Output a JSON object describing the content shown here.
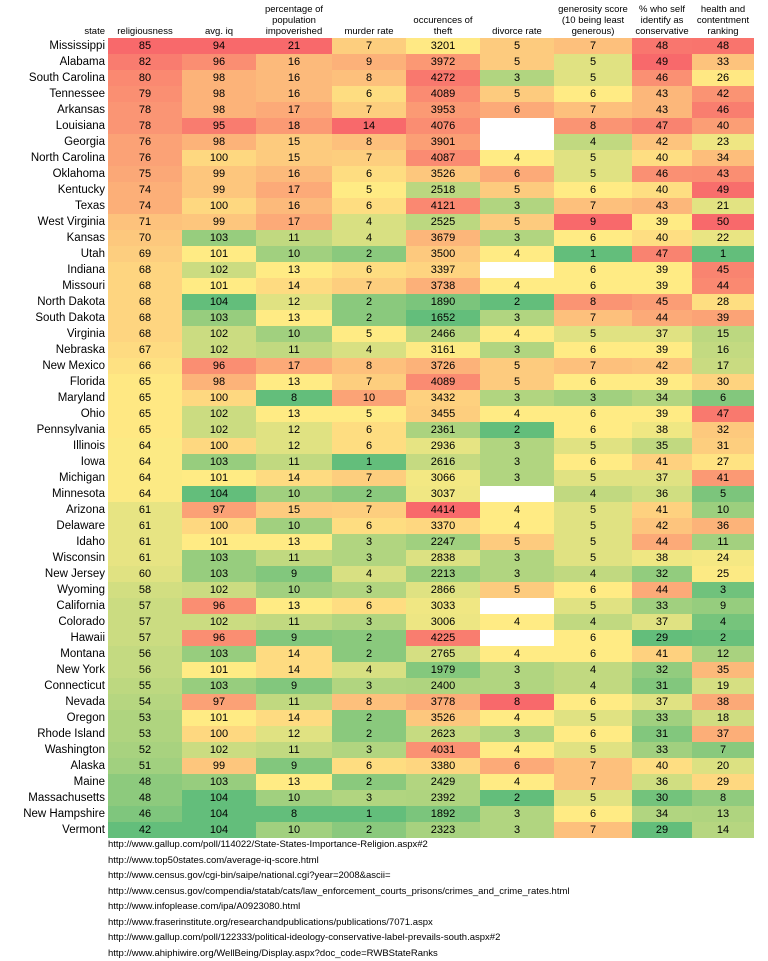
{
  "columns": [
    "state",
    "religiousness",
    "avg. iq",
    "percentage of population impoverished",
    "murder rate",
    "occurences of theft",
    "divorce rate",
    "generosity score (10 being least generous)",
    "% who self identify as conservative",
    "health and contentment ranking"
  ],
  "rows": [
    [
      "Mississippi",
      "85",
      "94",
      "21",
      "7",
      "3201",
      "5",
      "7",
      "48",
      "48"
    ],
    [
      "Alabama",
      "82",
      "96",
      "16",
      "9",
      "3972",
      "5",
      "5",
      "49",
      "33"
    ],
    [
      "South Carolina",
      "80",
      "98",
      "16",
      "8",
      "4272",
      "3",
      "5",
      "46",
      "26"
    ],
    [
      "Tennessee",
      "79",
      "98",
      "16",
      "6",
      "4089",
      "5",
      "6",
      "43",
      "42"
    ],
    [
      "Arkansas",
      "78",
      "98",
      "17",
      "7",
      "3953",
      "6",
      "7",
      "43",
      "46"
    ],
    [
      "Louisiana",
      "78",
      "95",
      "18",
      "14",
      "4076",
      "",
      "8",
      "47",
      "40"
    ],
    [
      "Georgia",
      "76",
      "98",
      "15",
      "8",
      "3901",
      "",
      "4",
      "42",
      "23"
    ],
    [
      "North Carolina",
      "76",
      "100",
      "15",
      "7",
      "4087",
      "4",
      "5",
      "40",
      "34"
    ],
    [
      "Oklahoma",
      "75",
      "99",
      "16",
      "6",
      "3526",
      "6",
      "5",
      "46",
      "43"
    ],
    [
      "Kentucky",
      "74",
      "99",
      "17",
      "5",
      "2518",
      "5",
      "6",
      "40",
      "49"
    ],
    [
      "Texas",
      "74",
      "100",
      "16",
      "6",
      "4121",
      "3",
      "7",
      "43",
      "21"
    ],
    [
      "West Virginia",
      "71",
      "99",
      "17",
      "4",
      "2525",
      "5",
      "9",
      "39",
      "50"
    ],
    [
      "Kansas",
      "70",
      "103",
      "11",
      "4",
      "3679",
      "3",
      "6",
      "40",
      "22"
    ],
    [
      "Utah",
      "69",
      "101",
      "10",
      "2",
      "3500",
      "4",
      "1",
      "47",
      "1"
    ],
    [
      "Indiana",
      "68",
      "102",
      "13",
      "6",
      "3397",
      "",
      "6",
      "39",
      "45"
    ],
    [
      "Missouri",
      "68",
      "101",
      "14",
      "7",
      "3738",
      "4",
      "6",
      "39",
      "44"
    ],
    [
      "North Dakota",
      "68",
      "104",
      "12",
      "2",
      "1890",
      "2",
      "8",
      "45",
      "28"
    ],
    [
      "South Dakota",
      "68",
      "103",
      "13",
      "2",
      "1652",
      "3",
      "7",
      "44",
      "39"
    ],
    [
      "Virginia",
      "68",
      "102",
      "10",
      "5",
      "2466",
      "4",
      "5",
      "37",
      "15"
    ],
    [
      "Nebraska",
      "67",
      "102",
      "11",
      "4",
      "3161",
      "3",
      "6",
      "39",
      "16"
    ],
    [
      "New Mexico",
      "66",
      "96",
      "17",
      "8",
      "3726",
      "5",
      "7",
      "42",
      "17"
    ],
    [
      "Florida",
      "65",
      "98",
      "13",
      "7",
      "4089",
      "5",
      "6",
      "39",
      "30"
    ],
    [
      "Maryland",
      "65",
      "100",
      "8",
      "10",
      "3432",
      "3",
      "3",
      "34",
      "6"
    ],
    [
      "Ohio",
      "65",
      "102",
      "13",
      "5",
      "3455",
      "4",
      "6",
      "39",
      "47"
    ],
    [
      "Pennsylvania",
      "65",
      "102",
      "12",
      "6",
      "2361",
      "2",
      "6",
      "38",
      "32"
    ],
    [
      "Illinois",
      "64",
      "100",
      "12",
      "6",
      "2936",
      "3",
      "5",
      "35",
      "31"
    ],
    [
      "Iowa",
      "64",
      "103",
      "11",
      "1",
      "2616",
      "3",
      "6",
      "41",
      "27"
    ],
    [
      "Michigan",
      "64",
      "101",
      "14",
      "7",
      "3066",
      "3",
      "5",
      "37",
      "41"
    ],
    [
      "Minnesota",
      "64",
      "104",
      "10",
      "2",
      "3037",
      "",
      "4",
      "36",
      "5"
    ],
    [
      "Arizona",
      "61",
      "97",
      "15",
      "7",
      "4414",
      "4",
      "5",
      "41",
      "10"
    ],
    [
      "Delaware",
      "61",
      "100",
      "10",
      "6",
      "3370",
      "4",
      "5",
      "42",
      "36"
    ],
    [
      "Idaho",
      "61",
      "101",
      "13",
      "3",
      "2247",
      "5",
      "5",
      "44",
      "11"
    ],
    [
      "Wisconsin",
      "61",
      "103",
      "11",
      "3",
      "2838",
      "3",
      "5",
      "38",
      "24"
    ],
    [
      "New Jersey",
      "60",
      "103",
      "9",
      "4",
      "2213",
      "3",
      "4",
      "32",
      "25"
    ],
    [
      "Wyoming",
      "58",
      "102",
      "10",
      "3",
      "2866",
      "5",
      "6",
      "44",
      "3"
    ],
    [
      "California",
      "57",
      "96",
      "13",
      "6",
      "3033",
      "",
      "5",
      "33",
      "9"
    ],
    [
      "Colorado",
      "57",
      "102",
      "11",
      "3",
      "3006",
      "4",
      "4",
      "37",
      "4"
    ],
    [
      "Hawaii",
      "57",
      "96",
      "9",
      "2",
      "4225",
      "",
      "6",
      "29",
      "2"
    ],
    [
      "Montana",
      "56",
      "103",
      "14",
      "2",
      "2765",
      "4",
      "6",
      "41",
      "12"
    ],
    [
      "New York",
      "56",
      "101",
      "14",
      "4",
      "1979",
      "3",
      "4",
      "32",
      "35"
    ],
    [
      "Connecticut",
      "55",
      "103",
      "9",
      "3",
      "2400",
      "3",
      "4",
      "31",
      "19"
    ],
    [
      "Nevada",
      "54",
      "97",
      "11",
      "8",
      "3778",
      "8",
      "6",
      "37",
      "38"
    ],
    [
      "Oregon",
      "53",
      "101",
      "14",
      "2",
      "3526",
      "4",
      "5",
      "33",
      "18"
    ],
    [
      "Rhode Island",
      "53",
      "100",
      "12",
      "2",
      "2623",
      "3",
      "6",
      "31",
      "37"
    ],
    [
      "Washington",
      "52",
      "102",
      "11",
      "3",
      "4031",
      "4",
      "5",
      "33",
      "7"
    ],
    [
      "Alaska",
      "51",
      "99",
      "9",
      "6",
      "3380",
      "6",
      "7",
      "40",
      "20"
    ],
    [
      "Maine",
      "48",
      "103",
      "13",
      "2",
      "2429",
      "4",
      "7",
      "36",
      "29"
    ],
    [
      "Massachusetts",
      "48",
      "104",
      "10",
      "3",
      "2392",
      "2",
      "5",
      "30",
      "8"
    ],
    [
      "New Hampshire",
      "46",
      "104",
      "8",
      "1",
      "1892",
      "3",
      "6",
      "34",
      "13"
    ],
    [
      "Vermont",
      "42",
      "104",
      "10",
      "2",
      "2323",
      "3",
      "7",
      "29",
      "14"
    ]
  ],
  "sources": [
    "http://www.gallup.com/poll/114022/State-States-Importance-Religion.aspx#2",
    "http://www.top50states.com/average-iq-score.html",
    "http://www.census.gov/cgi-bin/saipe/national.cgi?year=2008&ascii=",
    "http://www.census.gov/compendia/statab/cats/law_enforcement_courts_prisons/crimes_and_crime_rates.html",
    "http://www.infoplease.com/ipa/A0923080.html",
    "http://www.fraserinstitute.org/researchandpublications/publications/7071.aspx",
    "http://www.gallup.com/poll/122333/political-ideology-conservative-label-prevails-south.aspx#2",
    "http://www.ahiphiwire.org/WellBeing/Display.aspx?doc_code=RWBStateRanks"
  ],
  "colors": {
    "scale_low": "#63be7b",
    "scale_mid": "#ffeb84",
    "scale_high": "#f8696b",
    "empty_cell": "#ffffff"
  }
}
